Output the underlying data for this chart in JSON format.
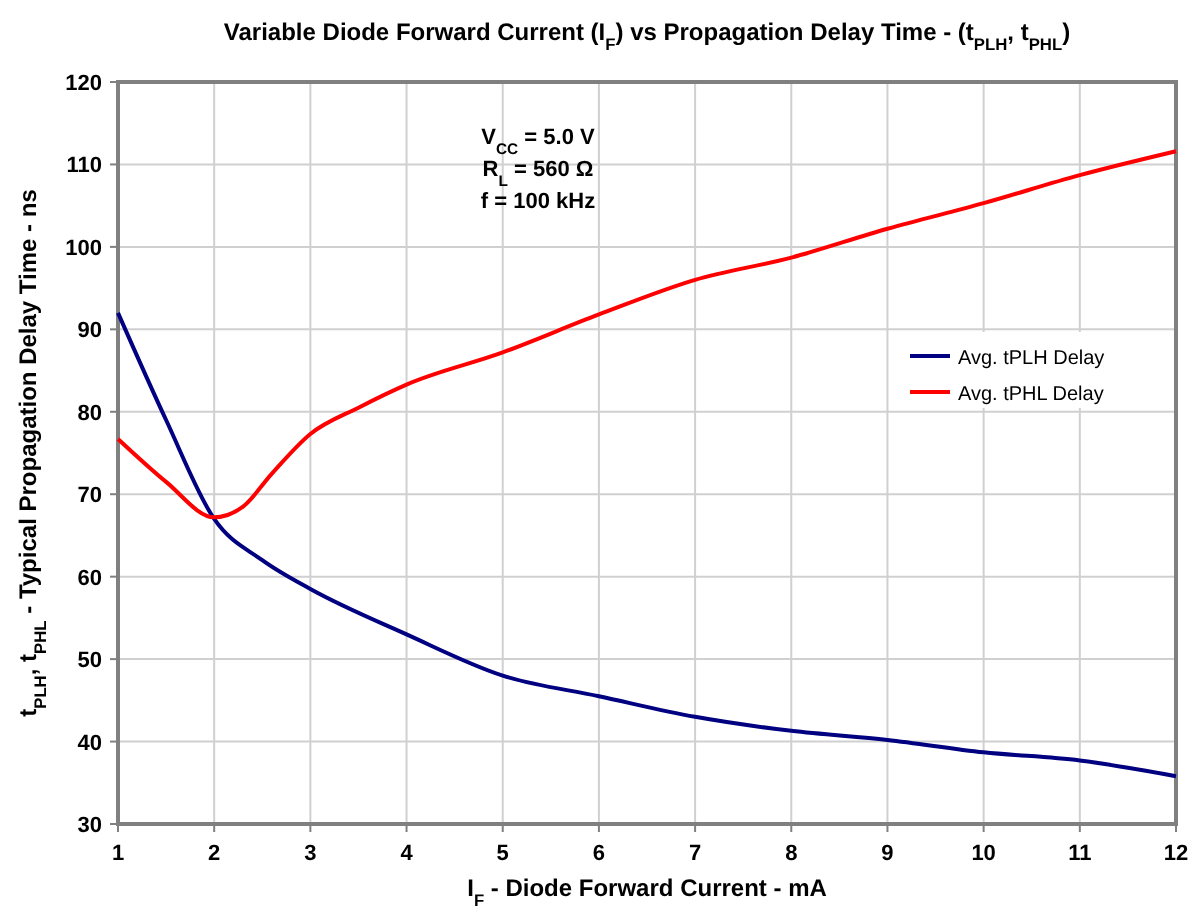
{
  "chart_data": {
    "type": "line",
    "title": "Variable Diode Forward Current (I$_{F}$) vs Propagation Delay Time - (t$_{PLH}$, t$_{PHL}$)",
    "xlabel": "I$_{F}$ - Diode Forward Current - mA",
    "ylabel": "t$_{PLH}$, t$_{PHL}$ - Typical Propagation Delay Time - ns",
    "annotations": [
      "V$_{CC}$ = 5.0 V",
      "R$_{L}$ = 560 Ω",
      "f = 100 kHz"
    ],
    "series": [
      {
        "name": "Avg. tPLH Delay",
        "color": "#000080",
        "x": [
          1,
          1.5,
          2,
          2.5,
          3,
          4,
          5,
          6,
          7,
          8,
          9,
          10,
          11,
          12
        ],
        "values": [
          92,
          79,
          67,
          62,
          58.5,
          53,
          48,
          45.5,
          43,
          41.3,
          40.2,
          38.7,
          37.7,
          35.8
        ]
      },
      {
        "name": "Avg. tPHL Delay",
        "color": "#ff0000",
        "x": [
          1,
          1.5,
          2,
          2.3,
          2.6,
          3,
          3.5,
          4,
          5,
          6,
          7,
          8,
          9,
          10,
          11,
          12
        ],
        "values": [
          76.7,
          71.5,
          67.2,
          68.5,
          72.5,
          77.3,
          80.5,
          83.3,
          87.2,
          91.8,
          96,
          98.7,
          102.2,
          105.3,
          108.7,
          111.6
        ]
      }
    ],
    "xlim": [
      1,
      12
    ],
    "xticks": [
      1,
      2,
      3,
      4,
      5,
      6,
      7,
      8,
      9,
      10,
      11,
      12
    ],
    "ylim": [
      30,
      120
    ],
    "yticks": [
      30,
      40,
      50,
      60,
      70,
      80,
      90,
      100,
      110,
      120
    ],
    "grid": true,
    "legend": "right",
    "marker": "none",
    "line_style": "solid"
  }
}
